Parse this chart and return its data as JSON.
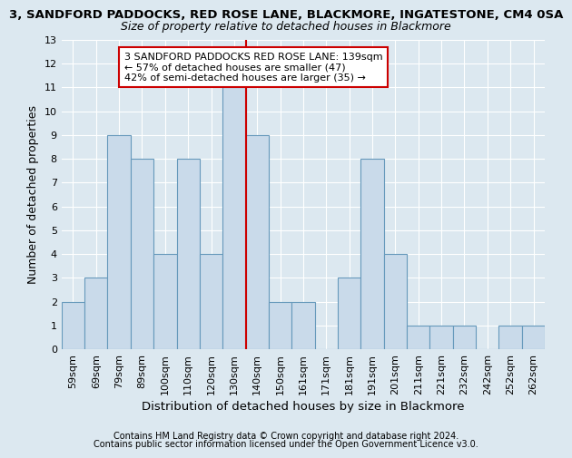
{
  "title1": "3, SANDFORD PADDOCKS, RED ROSE LANE, BLACKMORE, INGATESTONE, CM4 0SA",
  "title2": "Size of property relative to detached houses in Blackmore",
  "xlabel": "Distribution of detached houses by size in Blackmore",
  "ylabel": "Number of detached properties",
  "categories": [
    "59sqm",
    "69sqm",
    "79sqm",
    "89sqm",
    "100sqm",
    "110sqm",
    "120sqm",
    "130sqm",
    "140sqm",
    "150sqm",
    "161sqm",
    "171sqm",
    "181sqm",
    "191sqm",
    "201sqm",
    "211sqm",
    "221sqm",
    "232sqm",
    "242sqm",
    "252sqm",
    "262sqm"
  ],
  "values": [
    2,
    3,
    9,
    8,
    4,
    8,
    4,
    11,
    9,
    2,
    2,
    0,
    3,
    8,
    4,
    1,
    1,
    1,
    0,
    1,
    1
  ],
  "bar_color": "#c9daea",
  "bar_edge_color": "#6699bb",
  "red_line_index": 8,
  "highlight_color": "#cc0000",
  "annotation_lines": [
    "3 SANDFORD PADDOCKS RED ROSE LANE: 139sqm",
    "← 57% of detached houses are smaller (47)",
    "42% of semi-detached houses are larger (35) →"
  ],
  "ylim": [
    0,
    13
  ],
  "yticks": [
    0,
    1,
    2,
    3,
    4,
    5,
    6,
    7,
    8,
    9,
    10,
    11,
    12,
    13
  ],
  "footer1": "Contains HM Land Registry data © Crown copyright and database right 2024.",
  "footer2": "Contains public sector information licensed under the Open Government Licence v3.0.",
  "background_color": "#dce8f0",
  "title1_fontsize": 9.5,
  "title2_fontsize": 9,
  "tick_fontsize": 8,
  "ylabel_fontsize": 9,
  "xlabel_fontsize": 9.5,
  "annotation_fontsize": 8,
  "footer_fontsize": 7
}
